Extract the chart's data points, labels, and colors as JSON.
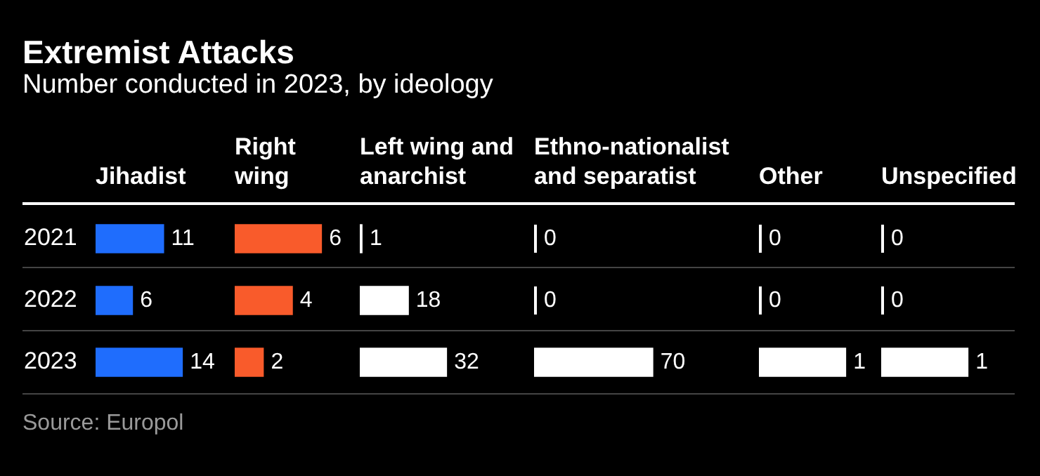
{
  "chart_data": [
    {
      "type": "other",
      "title": "Extremist Attacks",
      "subtitle": "Number conducted in 2023, by ideology",
      "annotations": [
        "Source: Europol"
      ]
    },
    {
      "type": "bar",
      "orientation": "horizontal",
      "title": "Jihadist",
      "categories": [
        "2021",
        "2022",
        "2023"
      ],
      "values": [
        11,
        6,
        14
      ],
      "color": "#1f6dfd",
      "data_labels": true,
      "tick_labels": "y"
    },
    {
      "type": "bar",
      "orientation": "horizontal",
      "title": "Right wing",
      "categories": [
        "2021",
        "2022",
        "2023"
      ],
      "values": [
        6,
        4,
        2
      ],
      "color": "#f95b2b",
      "data_labels": true,
      "tick_labels": false
    },
    {
      "type": "bar",
      "orientation": "horizontal",
      "title": "Left wing and anarchist",
      "categories": [
        "2021",
        "2022",
        "2023"
      ],
      "values": [
        1,
        18,
        32
      ],
      "color": "#ffffff",
      "data_labels": true,
      "tick_labels": false
    },
    {
      "type": "bar",
      "orientation": "horizontal",
      "title": "Ethno-nationalist and separatist",
      "categories": [
        "2021",
        "2022",
        "2023"
      ],
      "values": [
        0,
        0,
        70
      ],
      "color": "#ffffff",
      "data_labels": true,
      "tick_labels": false
    },
    {
      "type": "bar",
      "orientation": "horizontal",
      "title": "Other",
      "categories": [
        "2021",
        "2022",
        "2023"
      ],
      "values": [
        0,
        0,
        1
      ],
      "color": "#ffffff",
      "data_labels": true,
      "tick_labels": false
    },
    {
      "type": "bar",
      "orientation": "horizontal",
      "title": "Unspecified",
      "categories": [
        "2021",
        "2022",
        "2023"
      ],
      "values": [
        0,
        0,
        1
      ],
      "color": "#ffffff",
      "data_labels": true,
      "tick_labels": false
    }
  ]
}
